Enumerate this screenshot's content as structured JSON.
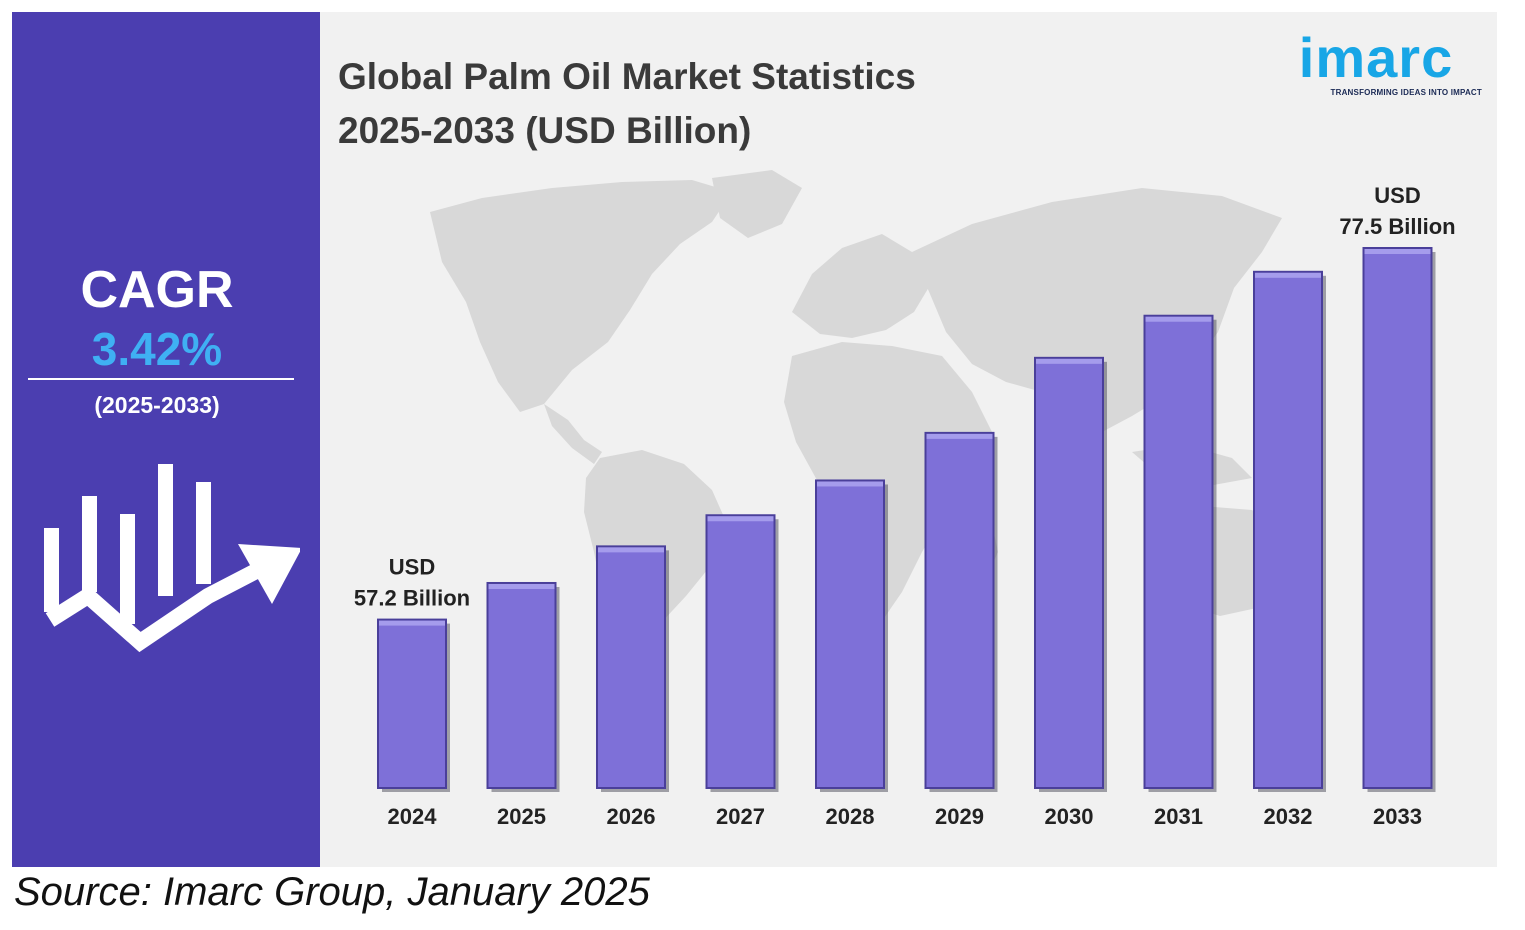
{
  "colors": {
    "panel": "#4b3eb0",
    "bar_face": "#7e70d8",
    "bar_top": "#a59cec",
    "bar_edge": "#4a3f9a",
    "bar_shadow": "#5a5a66",
    "accent": "#3fb0f3",
    "map": "#d8d8d8"
  },
  "cagr": {
    "label": "CAGR",
    "value": "3.42%",
    "period": "(2025-2033)",
    "icon": "growth-chart-arrow-icon"
  },
  "logo": {
    "text": "imarc",
    "tagline": "TRANSFORMING IDEAS INTO IMPACT"
  },
  "source": "Source: Imarc Group, January 2025",
  "chart_data": {
    "type": "bar",
    "title_lines": [
      "Global Palm Oil Market Statistics",
      "2025-2033 (USD Billion)"
    ],
    "categories": [
      "2024",
      "2025",
      "2026",
      "2027",
      "2028",
      "2029",
      "2030",
      "2031",
      "2032",
      "2033"
    ],
    "values": [
      57.2,
      59.2,
      61.2,
      62.9,
      64.8,
      67.4,
      71.5,
      73.8,
      76.2,
      77.5
    ],
    "xlabel": "",
    "ylabel": "",
    "ylim": [
      48,
      82
    ],
    "grid": false,
    "annotations": [
      {
        "category": "2024",
        "lines": [
          "USD",
          "57.2 Billion"
        ]
      },
      {
        "category": "2033",
        "lines": [
          "USD",
          "77.5 Billion"
        ]
      }
    ]
  }
}
